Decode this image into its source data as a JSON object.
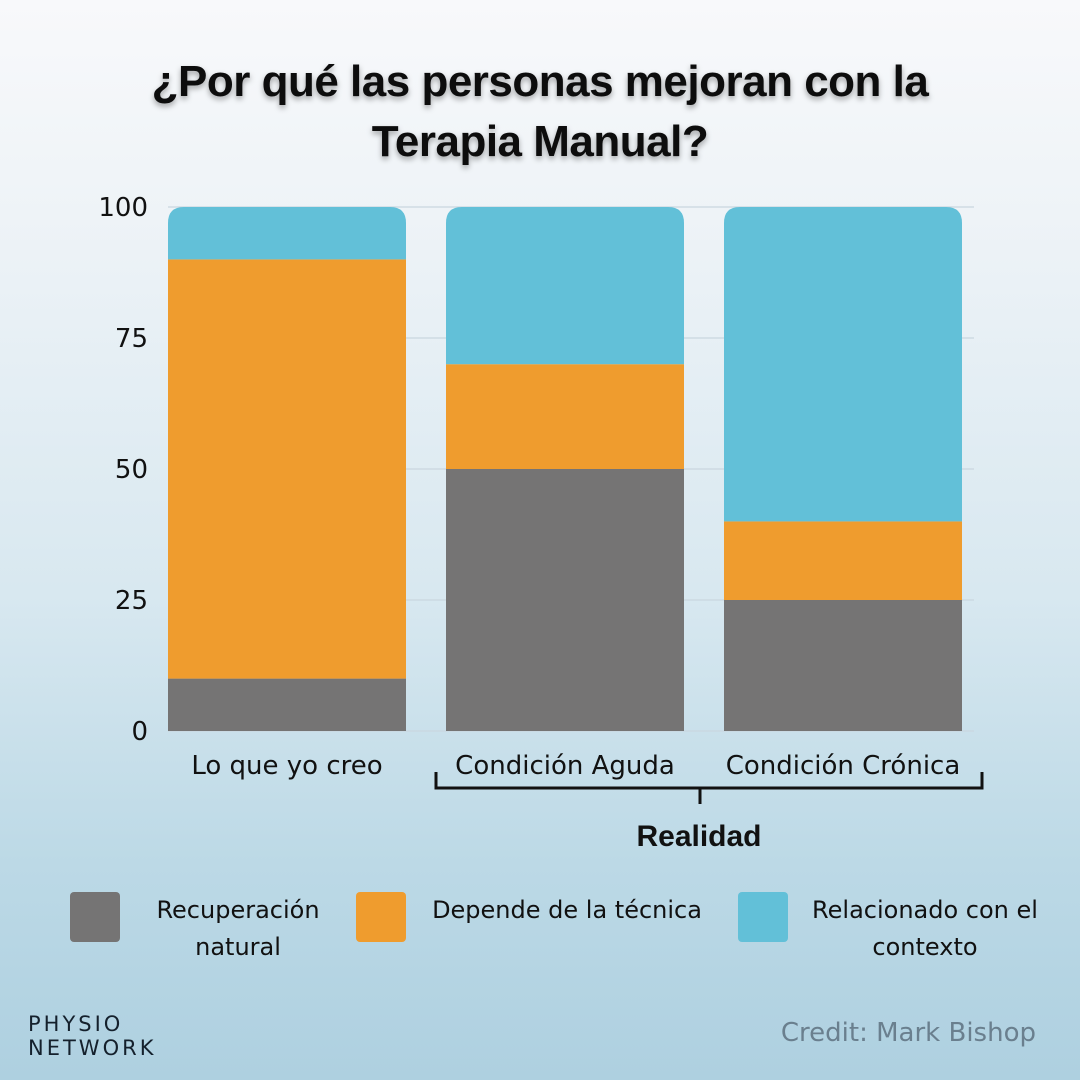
{
  "title": {
    "line1": "¿Por qué las personas mejoran con la",
    "line2": "Terapia Manual?"
  },
  "colors": {
    "recuperacion": "#757474",
    "tecnica": "#ef9c2e",
    "contexto": "#62c0d8",
    "grid": "#c9d6df",
    "bracket": "#111111"
  },
  "chart_data": {
    "type": "bar",
    "stacked": true,
    "title": "¿Por qué las personas mejoran con la Terapia Manual?",
    "xlabel": "",
    "ylabel": "",
    "ylim": [
      0,
      100
    ],
    "yticks": [
      0,
      25,
      50,
      75,
      100
    ],
    "grid": true,
    "legend_position": "bottom",
    "categories": [
      "Lo que yo creo",
      "Condición Aguda",
      "Condición Crónica"
    ],
    "group_annotation": {
      "label": "Realidad",
      "spans": [
        "Condición Aguda",
        "Condición Crónica"
      ]
    },
    "series": [
      {
        "name": "Recuperación natural",
        "color_key": "recuperacion",
        "values": [
          10,
          50,
          25
        ]
      },
      {
        "name": "Depende de la técnica",
        "color_key": "tecnica",
        "values": [
          80,
          20,
          15
        ]
      },
      {
        "name": "Relacionado con el contexto",
        "color_key": "contexto",
        "values": [
          10,
          30,
          60
        ]
      }
    ]
  },
  "legend": [
    {
      "line1": "Recuperación",
      "line2": "natural",
      "color_key": "recuperacion"
    },
    {
      "line1": "Depende de la técnica",
      "line2": "",
      "color_key": "tecnica"
    },
    {
      "line1": "Relacionado con el",
      "line2": "contexto",
      "color_key": "contexto"
    }
  ],
  "footer": {
    "logo_line1": "PHYSIO",
    "logo_line2": "NETWORK",
    "credit": "Credit: Mark Bishop"
  }
}
